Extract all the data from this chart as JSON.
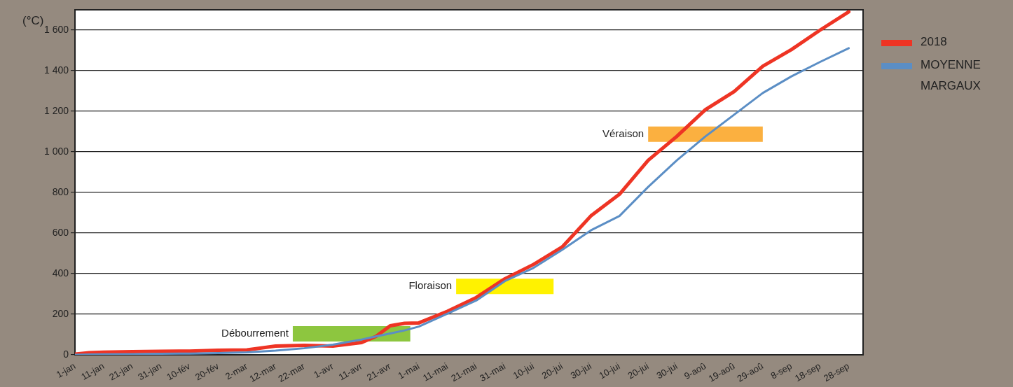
{
  "chart_data": {
    "type": "line",
    "ylabel": "(°C)",
    "x": [
      "--01-01",
      "--01-06",
      "--01-11",
      "--01-21",
      "--01-31",
      "--02-10",
      "--02-20",
      "--03-02",
      "--03-12",
      "--03-22",
      "--04-01",
      "--04-11",
      "--04-16",
      "--04-21",
      "--04-26",
      "--05-01",
      "--05-11",
      "--05-21",
      "--05-31",
      "--06-10",
      "--06-20",
      "--06-30",
      "--07-10",
      "--07-20",
      "--07-30",
      "--08-09",
      "--08-19",
      "--08-29",
      "--09-08",
      "--09-18",
      "--09-28"
    ],
    "series": [
      {
        "name": "2018",
        "color": "#ee3424",
        "values": [
          3,
          10,
          13,
          15,
          17,
          18,
          22,
          24,
          43,
          46,
          43,
          60,
          90,
          143,
          155,
          157,
          214,
          282,
          374,
          445,
          531,
          684,
          791,
          958,
          1076,
          1208,
          1297,
          1422,
          1504,
          1600,
          1690
        ]
      },
      {
        "name": "MOYENNE MARGAUX",
        "color": "#5b8ec5",
        "values": [
          0,
          1,
          2,
          3,
          5,
          6,
          8,
          12,
          20,
          32,
          50,
          75,
          90,
          105,
          120,
          139,
          203,
          267,
          363,
          428,
          517,
          613,
          684,
          827,
          958,
          1076,
          1183,
          1290,
          1372,
          1443,
          1511
        ]
      }
    ],
    "xlim": [
      "--01-01",
      "--10-03"
    ],
    "xticks": [
      {
        "value": "--01-01",
        "label": "1-jan"
      },
      {
        "value": "--01-11",
        "label": "11-jan"
      },
      {
        "value": "--01-21",
        "label": "21-jan"
      },
      {
        "value": "--01-31",
        "label": "31-jan"
      },
      {
        "value": "--02-10",
        "label": "10-fév"
      },
      {
        "value": "--02-20",
        "label": "20-fév"
      },
      {
        "value": "--03-02",
        "label": "2-mar"
      },
      {
        "value": "--03-12",
        "label": "12-mar"
      },
      {
        "value": "--03-22",
        "label": "22-mar"
      },
      {
        "value": "--04-01",
        "label": "1-avr"
      },
      {
        "value": "--04-11",
        "label": "11-avr"
      },
      {
        "value": "--04-21",
        "label": "21-avr"
      },
      {
        "value": "--05-01",
        "label": "1-mai"
      },
      {
        "value": "--05-11",
        "label": "11-mai"
      },
      {
        "value": "--05-21",
        "label": "21-mai"
      },
      {
        "value": "--05-31",
        "label": "31-mai"
      },
      {
        "value": "--06-10",
        "label": "10-jui"
      },
      {
        "value": "--06-20",
        "label": "20-jui"
      },
      {
        "value": "--06-30",
        "label": "30-jui"
      },
      {
        "value": "--07-10",
        "label": "10-jui"
      },
      {
        "value": "--07-20",
        "label": "20-jui"
      },
      {
        "value": "--07-30",
        "label": "30-jui"
      },
      {
        "value": "--08-09",
        "label": "9-aoû"
      },
      {
        "value": "--08-19",
        "label": "19-aoû"
      },
      {
        "value": "--08-29",
        "label": "29-aoû"
      },
      {
        "value": "--09-08",
        "label": "8-sep"
      },
      {
        "value": "--09-18",
        "label": "18-sep"
      },
      {
        "value": "--09-28",
        "label": "28-sep"
      }
    ],
    "ylim": [
      0,
      1700
    ],
    "yticks": [
      0,
      200,
      400,
      600,
      800,
      {
        "value": 1000,
        "label": "1 000"
      },
      {
        "value": 1200,
        "label": "1 200"
      },
      {
        "value": 1400,
        "label": "1 400"
      },
      {
        "value": 1600,
        "label": "1 600"
      }
    ],
    "grid": "y",
    "legend": "right",
    "marker": "none",
    "line_style": "solid",
    "bands": [
      {
        "axis": "x",
        "from": "--03-18",
        "to": "--04-28",
        "label": "Débourrement",
        "color": "#8dc63f"
      },
      {
        "axis": "x",
        "from": "--05-14",
        "to": "--06-17",
        "label": "Floraison",
        "color": "#fff200"
      },
      {
        "axis": "x",
        "from": "--07-20",
        "to": "--08-29",
        "label": "Véraison",
        "color": "#fbb040"
      }
    ]
  }
}
